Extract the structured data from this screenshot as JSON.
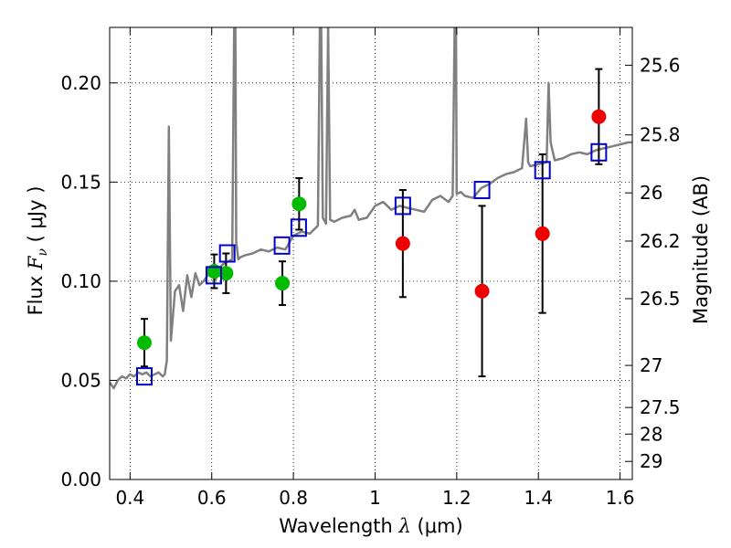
{
  "chart_data": {
    "type": "scatter",
    "xlabel": "Wavelength  λ (μm)",
    "ylabel": "Flux  F_ν  ( μJy )",
    "ylabel_parts": {
      "prefix": "Flux  ",
      "symbol": "F",
      "subscript": "ν",
      "suffix": "  ( μJy )"
    },
    "xlabel_parts": {
      "prefix": "Wavelength  ",
      "symbol": "λ",
      "suffix": " (μm)"
    },
    "y2label": "Magnitude (AB)",
    "xlim": [
      0.35,
      1.63
    ],
    "ylim": [
      0.0,
      0.228
    ],
    "grid": true,
    "colors": {
      "spectrum": "#808080",
      "green_points": "#00bb00",
      "red_points": "#ee0000",
      "model_squares": "#0000cc",
      "errorbar": "#000000"
    },
    "x_ticks": [
      {
        "value": 0.4,
        "label": "0.4"
      },
      {
        "value": 0.6,
        "label": "0.6"
      },
      {
        "value": 0.8,
        "label": "0.8"
      },
      {
        "value": 1.0,
        "label": "1"
      },
      {
        "value": 1.2,
        "label": "1.2"
      },
      {
        "value": 1.4,
        "label": "1.4"
      },
      {
        "value": 1.6,
        "label": "1.6"
      }
    ],
    "y_ticks": [
      {
        "value": 0.0,
        "label": "0.00"
      },
      {
        "value": 0.05,
        "label": "0.05"
      },
      {
        "value": 0.1,
        "label": "0.10"
      },
      {
        "value": 0.15,
        "label": "0.15"
      },
      {
        "value": 0.2,
        "label": "0.20"
      }
    ],
    "y2_ticks": [
      {
        "mag": 25.6,
        "label": "25.6"
      },
      {
        "mag": 25.8,
        "label": "25.8"
      },
      {
        "mag": 26,
        "label": "26"
      },
      {
        "mag": 26.2,
        "label": "26.2"
      },
      {
        "mag": 26.5,
        "label": "26.5"
      },
      {
        "mag": 27,
        "label": "27"
      },
      {
        "mag": 27.5,
        "label": "27.5"
      },
      {
        "mag": 28,
        "label": "28"
      },
      {
        "mag": 29,
        "label": "29"
      }
    ],
    "spectrum": {
      "x": [
        0.35,
        0.36,
        0.37,
        0.38,
        0.39,
        0.4,
        0.41,
        0.42,
        0.43,
        0.44,
        0.45,
        0.46,
        0.47,
        0.48,
        0.485,
        0.49,
        0.495,
        0.5,
        0.51,
        0.52,
        0.53,
        0.54,
        0.55,
        0.56,
        0.57,
        0.58,
        0.59,
        0.6,
        0.61,
        0.62,
        0.63,
        0.64,
        0.65,
        0.655,
        0.658,
        0.66,
        0.665,
        0.67,
        0.68,
        0.7,
        0.72,
        0.74,
        0.76,
        0.78,
        0.8,
        0.82,
        0.84,
        0.86,
        0.865,
        0.868,
        0.872,
        0.88,
        0.885,
        0.89,
        0.9,
        0.92,
        0.94,
        0.95,
        0.96,
        0.98,
        1.0,
        1.02,
        1.04,
        1.06,
        1.08,
        1.1,
        1.12,
        1.14,
        1.16,
        1.18,
        1.19,
        1.195,
        1.198,
        1.2,
        1.21,
        1.22,
        1.24,
        1.26,
        1.28,
        1.3,
        1.32,
        1.34,
        1.36,
        1.37,
        1.375,
        1.38,
        1.4,
        1.42,
        1.425,
        1.43,
        1.44,
        1.46,
        1.48,
        1.5,
        1.52,
        1.54,
        1.56,
        1.58,
        1.6,
        1.62,
        1.63
      ],
      "y": [
        0.049,
        0.046,
        0.05,
        0.052,
        0.051,
        0.053,
        0.052,
        0.054,
        0.053,
        0.054,
        0.052,
        0.053,
        0.054,
        0.052,
        0.053,
        0.06,
        0.178,
        0.07,
        0.095,
        0.098,
        0.085,
        0.103,
        0.092,
        0.104,
        0.098,
        0.1,
        0.103,
        0.104,
        0.101,
        0.107,
        0.109,
        0.11,
        0.111,
        0.23,
        0.23,
        0.12,
        0.111,
        0.112,
        0.113,
        0.114,
        0.116,
        0.115,
        0.117,
        0.116,
        0.123,
        0.125,
        0.124,
        0.128,
        0.23,
        0.23,
        0.132,
        0.129,
        0.23,
        0.131,
        0.13,
        0.132,
        0.133,
        0.136,
        0.131,
        0.132,
        0.138,
        0.14,
        0.136,
        0.138,
        0.137,
        0.136,
        0.135,
        0.141,
        0.143,
        0.14,
        0.143,
        0.23,
        0.23,
        0.144,
        0.145,
        0.143,
        0.142,
        0.147,
        0.149,
        0.152,
        0.154,
        0.155,
        0.157,
        0.182,
        0.16,
        0.158,
        0.159,
        0.16,
        0.2,
        0.17,
        0.161,
        0.162,
        0.164,
        0.165,
        0.164,
        0.166,
        0.167,
        0.168,
        0.169,
        0.17,
        0.17
      ]
    },
    "series": [
      {
        "role": "green_points",
        "points": [
          {
            "x": 0.435,
            "y": 0.069,
            "err": 0.012
          },
          {
            "x": 0.606,
            "y": 0.105,
            "err": 0.0085
          },
          {
            "x": 0.635,
            "y": 0.104,
            "err": 0.01
          },
          {
            "x": 0.773,
            "y": 0.099,
            "err": 0.011
          },
          {
            "x": 0.814,
            "y": 0.139,
            "err": 0.013
          }
        ]
      },
      {
        "role": "red_points",
        "points": [
          {
            "x": 1.068,
            "y": 0.119,
            "err": 0.027
          },
          {
            "x": 1.262,
            "y": 0.095,
            "err": 0.043
          },
          {
            "x": 1.41,
            "y": 0.124,
            "err": 0.04
          },
          {
            "x": 1.548,
            "y": 0.183,
            "err": 0.024
          }
        ]
      },
      {
        "role": "model_squares",
        "points": [
          {
            "x": 0.435,
            "y": 0.052
          },
          {
            "x": 0.605,
            "y": 0.103
          },
          {
            "x": 0.638,
            "y": 0.114
          },
          {
            "x": 0.772,
            "y": 0.118
          },
          {
            "x": 0.813,
            "y": 0.127
          },
          {
            "x": 1.068,
            "y": 0.138
          },
          {
            "x": 1.262,
            "y": 0.146
          },
          {
            "x": 1.41,
            "y": 0.156
          },
          {
            "x": 1.548,
            "y": 0.165
          }
        ]
      }
    ]
  }
}
